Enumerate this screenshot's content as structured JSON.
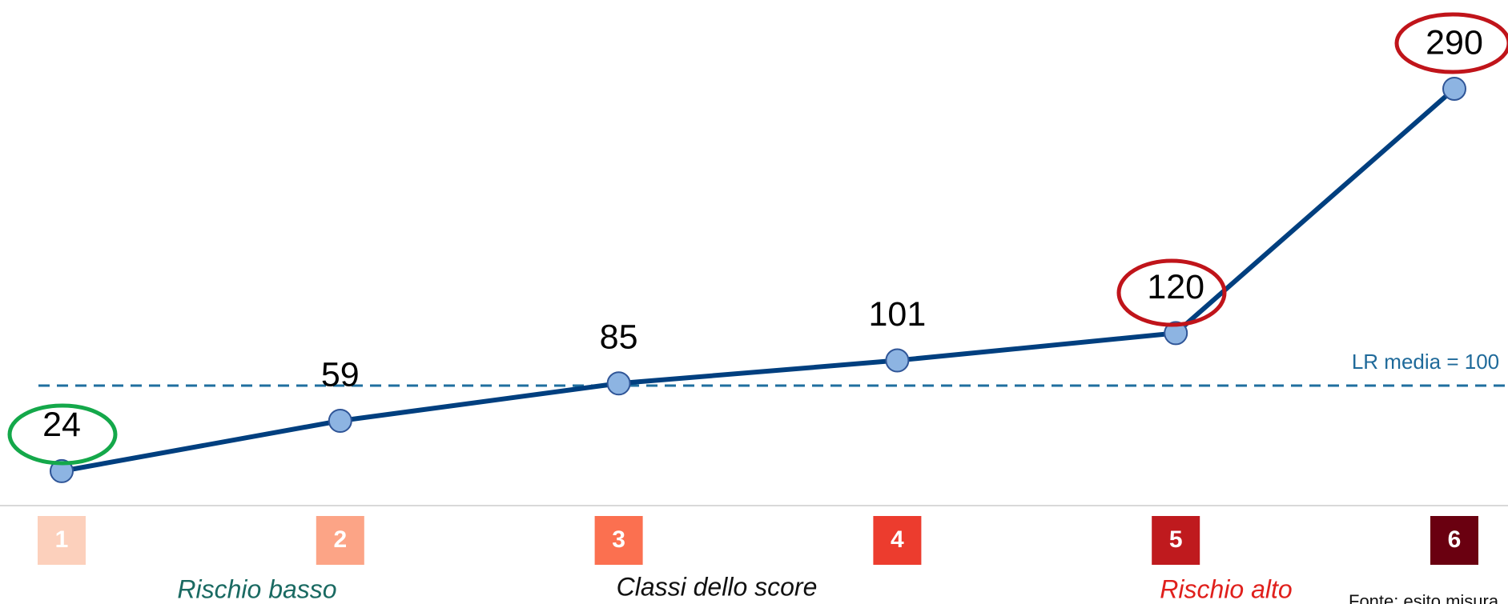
{
  "chart_data": {
    "type": "line",
    "categories": [
      "1",
      "2",
      "3",
      "4",
      "5",
      "6"
    ],
    "series": [
      {
        "name": "LR",
        "color": "#003f7f",
        "values": [
          24,
          59,
          85,
          101,
          120,
          290
        ]
      }
    ],
    "marker_color": "#8db4e2",
    "category_colors": [
      "#fcd0bc",
      "#fca486",
      "#fb7050",
      "#ec3c2e",
      "#bf1a1e",
      "#6a0010"
    ],
    "ylim": [
      0,
      300
    ],
    "reference_label": "LR media = 100",
    "x_label": "Classi dello score",
    "low_label": "Rischio basso",
    "high_label": "Rischio alto",
    "source": "Fonte: esito misura"
  }
}
